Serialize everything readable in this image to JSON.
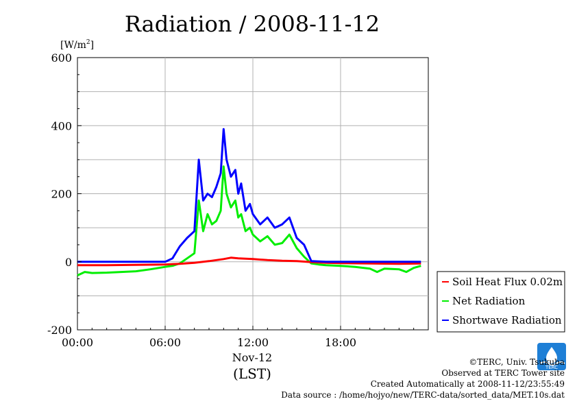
{
  "chart_data": {
    "type": "line",
    "title": "Radiation / 2008-11-12",
    "ylabel": "[W/m²]",
    "ylabel_main": "[W/m",
    "ylabel_sup": "2",
    "ylabel_end": "]",
    "xlabel": "(LST)",
    "x_date_label": "Nov-12",
    "ylim": [
      -200,
      600
    ],
    "xlim": [
      0,
      24
    ],
    "y_ticks": [
      "600",
      "400",
      "200",
      "0",
      "-200"
    ],
    "x_ticks": [
      "00:00",
      "06:00",
      "12:00",
      "18:00"
    ],
    "grid": true,
    "legend_position": "bottom-right",
    "series": [
      {
        "name": "Soil Heat Flux 0.02m",
        "color": "#ff0000",
        "x": [
          0,
          2,
          4,
          6,
          7,
          8,
          9,
          10,
          10.5,
          11,
          12,
          13,
          14,
          15,
          16,
          17,
          18,
          20,
          22,
          23.5
        ],
        "y": [
          -10,
          -10,
          -9,
          -8,
          -6,
          -3,
          2,
          8,
          12,
          10,
          8,
          5,
          3,
          2,
          -1,
          -3,
          -4,
          -5,
          -6,
          -5
        ]
      },
      {
        "name": "Net Radiation",
        "color": "#00ee00",
        "x": [
          0,
          0.5,
          1,
          2,
          3,
          4,
          5,
          6,
          6.5,
          7,
          7.5,
          8,
          8.3,
          8.6,
          8.9,
          9.2,
          9.5,
          9.8,
          10,
          10.2,
          10.5,
          10.8,
          11,
          11.2,
          11.5,
          11.8,
          12,
          12.5,
          13,
          13.5,
          14,
          14.5,
          15,
          15.5,
          16,
          16.5,
          17,
          18,
          19,
          20,
          20.5,
          21,
          22,
          22.5,
          23,
          23.5
        ],
        "y": [
          -40,
          -30,
          -33,
          -32,
          -30,
          -28,
          -22,
          -15,
          -12,
          -5,
          10,
          25,
          180,
          90,
          140,
          110,
          120,
          150,
          280,
          200,
          160,
          180,
          130,
          140,
          90,
          100,
          80,
          60,
          75,
          50,
          55,
          80,
          40,
          15,
          -5,
          -8,
          -10,
          -12,
          -15,
          -20,
          -30,
          -20,
          -22,
          -30,
          -18,
          -12
        ]
      },
      {
        "name": "Shortwave Radiation",
        "color": "#0000ff",
        "x": [
          0,
          6,
          6.5,
          7,
          7.5,
          8,
          8.3,
          8.6,
          8.9,
          9.2,
          9.5,
          9.8,
          10,
          10.2,
          10.5,
          10.8,
          11,
          11.2,
          11.5,
          11.8,
          12,
          12.5,
          13,
          13.5,
          14,
          14.5,
          15,
          15.5,
          16,
          17,
          18,
          20,
          22,
          23.5
        ],
        "y": [
          0,
          0,
          10,
          45,
          70,
          90,
          300,
          180,
          200,
          190,
          220,
          260,
          390,
          300,
          250,
          270,
          200,
          230,
          150,
          170,
          140,
          110,
          130,
          100,
          110,
          130,
          70,
          50,
          2,
          0,
          0,
          0,
          0,
          0
        ]
      }
    ]
  },
  "footer": {
    "copyright": "©TERC, Univ. Tsukuba",
    "observed": "Observed at TERC Tower site",
    "created": "Created Automatically at 2008-11-12/23:55:49",
    "source": "Data source : /home/hojyo/new/TERC-data/sorted_data/MET.10s.dat"
  },
  "logo": {
    "text": "TERC",
    "color": "#1e7fd6",
    "icon": "terc-logo-icon"
  }
}
